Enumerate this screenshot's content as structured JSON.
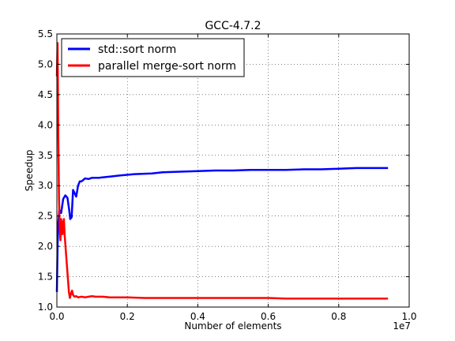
{
  "chart_data": {
    "type": "line",
    "title": "GCC-4.7.2",
    "xlabel": "Number of elements",
    "ylabel": "Speedup",
    "x_offset_label": "1e7",
    "xlim": [
      0.0,
      1.0
    ],
    "ylim": [
      1.0,
      5.5
    ],
    "x_tick_labels": [
      "0.0",
      "0.2",
      "0.4",
      "0.6",
      "0.8",
      "1.0"
    ],
    "y_tick_labels": [
      "1.0",
      "1.5",
      "2.0",
      "2.5",
      "3.0",
      "3.5",
      "4.0",
      "4.5",
      "5.0",
      "5.5"
    ],
    "grid": true,
    "legend_position": "top-left",
    "series": [
      {
        "name": "std::sort norm",
        "color": "#0000ff",
        "points": [
          [
            0.0,
            1.25
          ],
          [
            0.002,
            2.0
          ],
          [
            0.004,
            2.4
          ],
          [
            0.007,
            2.6
          ],
          [
            0.012,
            2.55
          ],
          [
            0.018,
            2.78
          ],
          [
            0.024,
            2.84
          ],
          [
            0.03,
            2.8
          ],
          [
            0.035,
            2.6
          ],
          [
            0.038,
            2.45
          ],
          [
            0.042,
            2.48
          ],
          [
            0.046,
            2.93
          ],
          [
            0.05,
            2.88
          ],
          [
            0.055,
            2.82
          ],
          [
            0.06,
            3.0
          ],
          [
            0.065,
            3.07
          ],
          [
            0.07,
            3.07
          ],
          [
            0.08,
            3.12
          ],
          [
            0.09,
            3.11
          ],
          [
            0.1,
            3.13
          ],
          [
            0.12,
            3.13
          ],
          [
            0.15,
            3.15
          ],
          [
            0.18,
            3.17
          ],
          [
            0.22,
            3.19
          ],
          [
            0.27,
            3.2
          ],
          [
            0.3,
            3.22
          ],
          [
            0.35,
            3.23
          ],
          [
            0.4,
            3.24
          ],
          [
            0.45,
            3.25
          ],
          [
            0.5,
            3.25
          ],
          [
            0.55,
            3.26
          ],
          [
            0.6,
            3.26
          ],
          [
            0.65,
            3.26
          ],
          [
            0.7,
            3.27
          ],
          [
            0.75,
            3.27
          ],
          [
            0.8,
            3.28
          ],
          [
            0.85,
            3.29
          ],
          [
            0.9,
            3.29
          ],
          [
            0.94,
            3.29
          ]
        ]
      },
      {
        "name": "parallel merge-sort norm",
        "color": "#ff0000",
        "points": [
          [
            0.0,
            4.8
          ],
          [
            0.002,
            5.35
          ],
          [
            0.004,
            3.8
          ],
          [
            0.006,
            2.8
          ],
          [
            0.008,
            2.3
          ],
          [
            0.01,
            2.1
          ],
          [
            0.012,
            2.45
          ],
          [
            0.014,
            2.3
          ],
          [
            0.016,
            2.2
          ],
          [
            0.018,
            2.4
          ],
          [
            0.02,
            2.45
          ],
          [
            0.022,
            2.2
          ],
          [
            0.025,
            1.95
          ],
          [
            0.028,
            1.72
          ],
          [
            0.031,
            1.5
          ],
          [
            0.034,
            1.25
          ],
          [
            0.037,
            1.15
          ],
          [
            0.04,
            1.22
          ],
          [
            0.043,
            1.27
          ],
          [
            0.046,
            1.2
          ],
          [
            0.05,
            1.17
          ],
          [
            0.055,
            1.18
          ],
          [
            0.06,
            1.16
          ],
          [
            0.07,
            1.17
          ],
          [
            0.08,
            1.16
          ],
          [
            0.09,
            1.17
          ],
          [
            0.1,
            1.18
          ],
          [
            0.11,
            1.17
          ],
          [
            0.13,
            1.17
          ],
          [
            0.15,
            1.16
          ],
          [
            0.2,
            1.16
          ],
          [
            0.25,
            1.15
          ],
          [
            0.3,
            1.15
          ],
          [
            0.35,
            1.15
          ],
          [
            0.4,
            1.15
          ],
          [
            0.45,
            1.15
          ],
          [
            0.5,
            1.15
          ],
          [
            0.55,
            1.15
          ],
          [
            0.6,
            1.15
          ],
          [
            0.65,
            1.14
          ],
          [
            0.7,
            1.14
          ],
          [
            0.75,
            1.14
          ],
          [
            0.8,
            1.14
          ],
          [
            0.85,
            1.14
          ],
          [
            0.9,
            1.14
          ],
          [
            0.94,
            1.14
          ]
        ]
      }
    ]
  }
}
